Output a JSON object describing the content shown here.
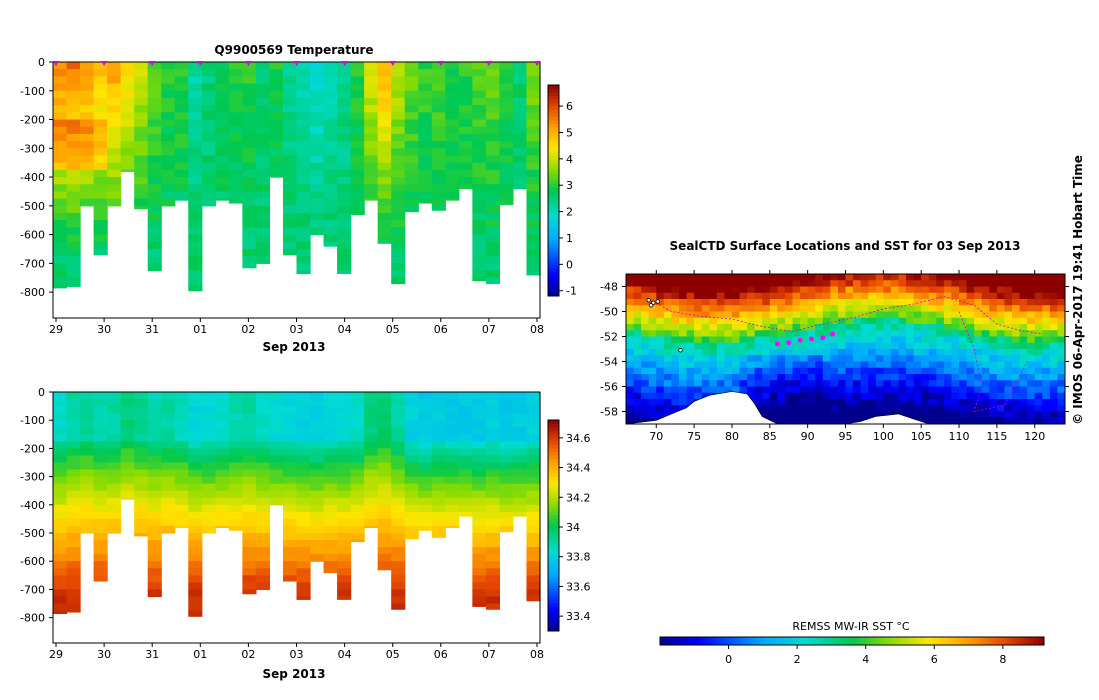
{
  "figure": {
    "copyright": "© IMOS 06-Apr-2017 19:41 Hobart Time"
  },
  "chart_data": [
    {
      "type": "heatmap",
      "title": "Q9900569  Temperature",
      "xlabel": "Sep 2013",
      "x_ticks": [
        "29",
        "30",
        "31",
        "01",
        "02",
        "03",
        "04",
        "05",
        "06",
        "07",
        "08"
      ],
      "y_ticks": [
        "0",
        "-100",
        "-200",
        "-300",
        "-400",
        "-500",
        "-600",
        "-700",
        "-800"
      ],
      "ylim": [
        -890,
        0
      ],
      "colorbar_ticks": [
        "-1",
        "0",
        "1",
        "2",
        "3",
        "4",
        "5",
        "6"
      ],
      "colorbar_range": [
        -1.2,
        6.8
      ],
      "profile_depths": [
        -785,
        -780,
        -500,
        -670,
        -500,
        -380,
        -510,
        -725,
        -500,
        -480,
        -795,
        -500,
        -480,
        -490,
        -715,
        -700,
        -400,
        -670,
        -735,
        -600,
        -640,
        -735,
        -530,
        -480,
        -630,
        -770,
        -520,
        -490,
        -515,
        -480,
        -440,
        -760,
        -770,
        -495,
        -440,
        -740
      ],
      "profile_values": [
        5.5,
        5.6,
        5.4,
        4.8,
        5.2,
        4.6,
        4.0,
        3.3,
        3.0,
        3.0,
        2.2,
        2.5,
        2.8,
        2.9,
        3.0,
        2.6,
        2.9,
        2.3,
        2.0,
        1.8,
        2.0,
        2.3,
        3.0,
        4.2,
        5.0,
        4.0,
        3.4,
        3.1,
        3.3,
        3.0,
        3.0,
        3.3,
        3.4,
        3.1,
        2.6,
        3.5
      ]
    },
    {
      "type": "heatmap",
      "title": "",
      "xlabel": "Sep 2013",
      "x_ticks": [
        "29",
        "30",
        "31",
        "01",
        "02",
        "03",
        "04",
        "05",
        "06",
        "07",
        "08"
      ],
      "y_ticks": [
        "0",
        "-100",
        "-200",
        "-300",
        "-400",
        "-500",
        "-600",
        "-700",
        "-800"
      ],
      "ylim": [
        -890,
        0
      ],
      "colorbar_ticks": [
        "33.4",
        "33.6",
        "33.8",
        "34",
        "34.2",
        "34.4",
        "34.6"
      ],
      "colorbar_range": [
        33.3,
        34.72
      ],
      "profile_depths": [
        -785,
        -780,
        -500,
        -670,
        -500,
        -380,
        -510,
        -725,
        -500,
        -480,
        -795,
        -500,
        -480,
        -490,
        -715,
        -700,
        -400,
        -670,
        -735,
        -600,
        -640,
        -735,
        -530,
        -480,
        -630,
        -770,
        -520,
        -490,
        -515,
        -480,
        -440,
        -760,
        -770,
        -495,
        -440,
        -740
      ],
      "surface_values": [
        33.85,
        33.9,
        33.92,
        33.88,
        33.9,
        33.95,
        33.92,
        33.88,
        33.9,
        33.87,
        33.82,
        33.83,
        33.85,
        33.88,
        33.9,
        33.86,
        33.84,
        33.82,
        33.8,
        33.8,
        33.82,
        33.83,
        33.85,
        33.95,
        33.97,
        33.9,
        33.8,
        33.78,
        33.8,
        33.79,
        33.78,
        33.78,
        33.8,
        33.78,
        33.79,
        33.8
      ]
    },
    {
      "type": "heatmap",
      "title": "SealCTD Surface Locations and SST for 03 Sep 2013",
      "x_ticks": [
        "70",
        "75",
        "80",
        "85",
        "90",
        "95",
        "100",
        "105",
        "110",
        "115",
        "120"
      ],
      "y_ticks": [
        "-48",
        "-50",
        "-52",
        "-54",
        "-56",
        "-58"
      ],
      "xlim": [
        66,
        124
      ],
      "ylim": [
        -59,
        -47
      ],
      "colorbar_label": "REMSS MW-IR SST °C",
      "colorbar_ticks": [
        "0",
        "2",
        "4",
        "6",
        "8"
      ],
      "colorbar_range": [
        -2,
        9.2
      ]
    }
  ]
}
